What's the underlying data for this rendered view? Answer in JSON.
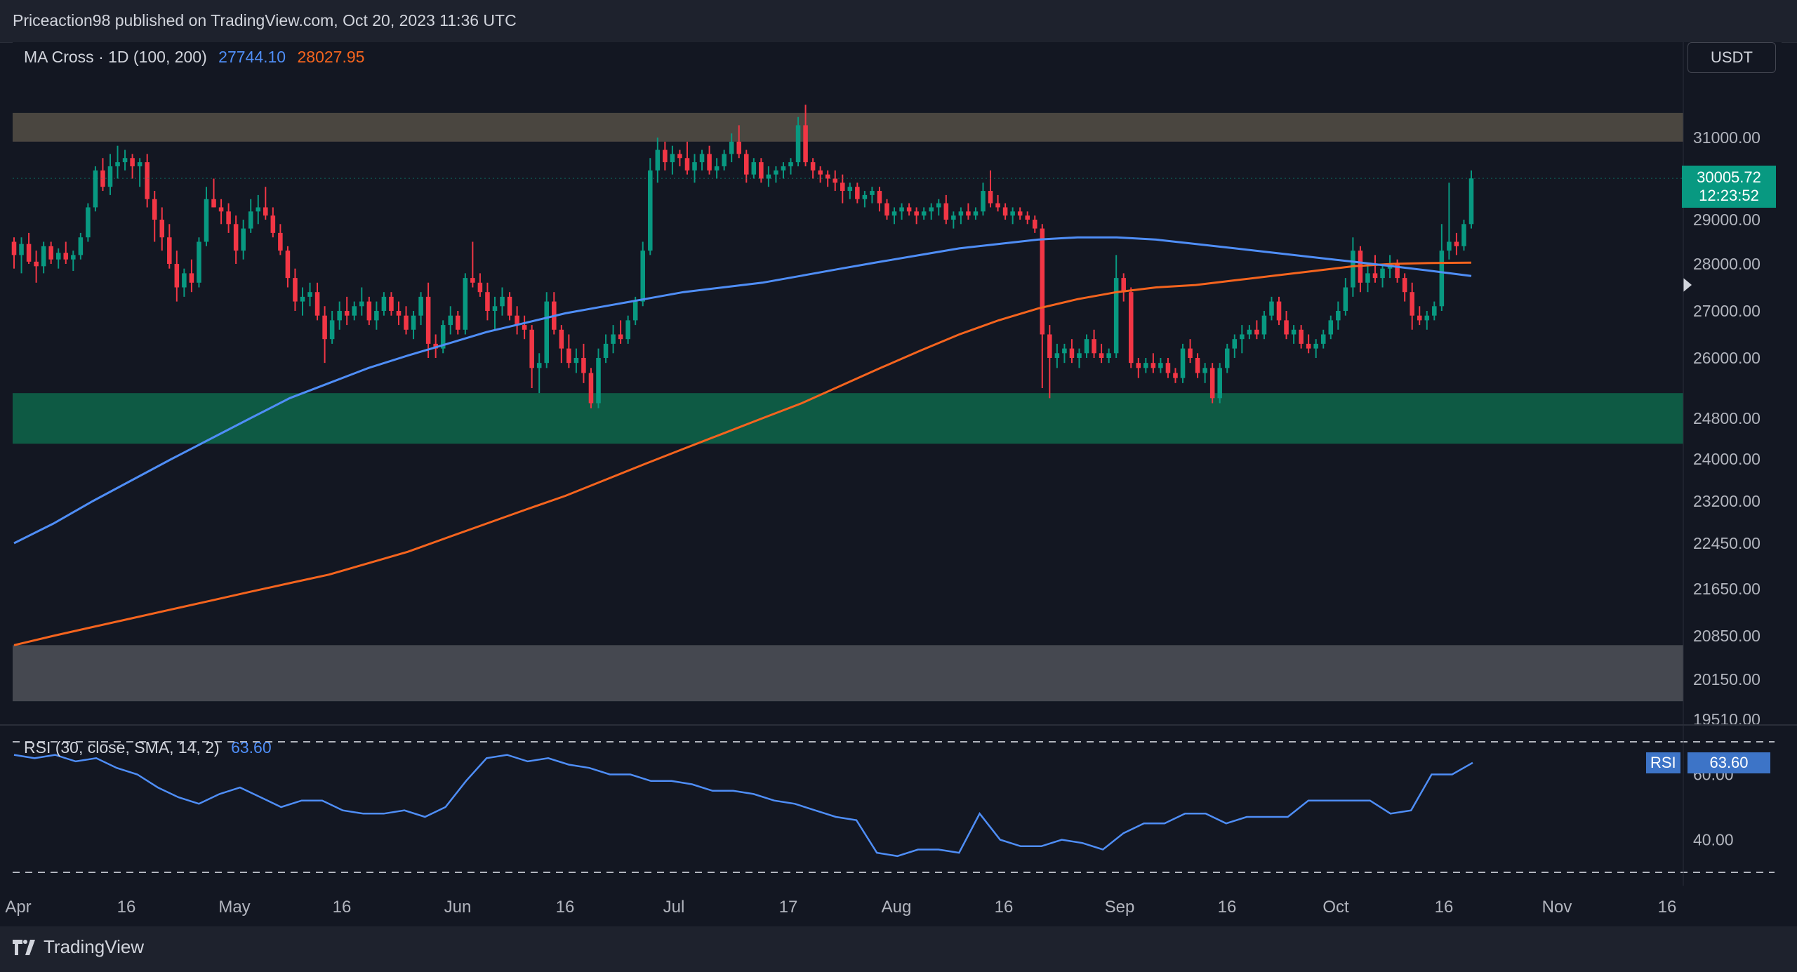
{
  "header": {
    "published_text": "Priceaction98 published on TradingView.com, Oct 20, 2023 11:36 UTC"
  },
  "indicator": {
    "name": "MA Cross · 1D (100, 200)",
    "ma100_value": "27744.10",
    "ma200_value": "28027.95",
    "ma100_color": "#4f8ef7",
    "ma200_color": "#f5641e"
  },
  "currency_button": "USDT",
  "price_tag": {
    "price": "30005.72",
    "countdown": "12:23:52",
    "color": "#089981"
  },
  "rsi": {
    "legend": "RSI (30, close, SMA, 14, 2)",
    "value": "63.60",
    "tag_label": "RSI",
    "tag_value": "63.60",
    "color": "#4f8ef7"
  },
  "footer": {
    "brand": "TradingView"
  },
  "colors": {
    "up": "#089981",
    "down": "#f23645",
    "resistance_zone": "#4a4640",
    "support_zone": "#0e5a44",
    "lower_zone": "#454850"
  },
  "chart_data": {
    "type": "candlestick",
    "title": "",
    "price_axis_ticks": [
      "31000.00",
      "29000.00",
      "28000.00",
      "27000.00",
      "26000.00",
      "24800.00",
      "24000.00",
      "23200.00",
      "22450.00",
      "21650.00",
      "20850.00",
      "20150.00",
      "19510.00"
    ],
    "time_axis_ticks": [
      "Apr",
      "16",
      "May",
      "16",
      "Jun",
      "16",
      "Jul",
      "17",
      "Aug",
      "16",
      "Sep",
      "16",
      "Oct",
      "16",
      "Nov",
      "16"
    ],
    "rsi_axis_ticks": [
      "60.00",
      "40.00"
    ],
    "zones": [
      {
        "name": "resistance",
        "from": 30900,
        "to": 31600
      },
      {
        "name": "support",
        "from": 24300,
        "to": 25300
      },
      {
        "name": "lower",
        "from": 19800,
        "to": 20700
      }
    ],
    "candles": [
      [
        28500,
        28600,
        27900,
        28200
      ],
      [
        28200,
        28600,
        27800,
        28450
      ],
      [
        28450,
        28700,
        28000,
        28050
      ],
      [
        28050,
        28300,
        27600,
        27950
      ],
      [
        27950,
        28500,
        27800,
        28400
      ],
      [
        28400,
        28500,
        28000,
        28100
      ],
      [
        28100,
        28350,
        27900,
        28250
      ],
      [
        28250,
        28500,
        28000,
        28100
      ],
      [
        28100,
        28300,
        27850,
        28200
      ],
      [
        28200,
        28700,
        28100,
        28600
      ],
      [
        28600,
        29400,
        28500,
        29300
      ],
      [
        29300,
        30300,
        29200,
        30200
      ],
      [
        30200,
        30500,
        29700,
        29800
      ],
      [
        29800,
        30600,
        29600,
        30300
      ],
      [
        30300,
        30800,
        30000,
        30400
      ],
      [
        30400,
        30700,
        30200,
        30500
      ],
      [
        30500,
        30600,
        30000,
        30300
      ],
      [
        30300,
        30500,
        29800,
        30400
      ],
      [
        30400,
        30600,
        29300,
        29500
      ],
      [
        29500,
        29700,
        28500,
        29000
      ],
      [
        29000,
        29300,
        28300,
        28600
      ],
      [
        28600,
        28900,
        27900,
        28000
      ],
      [
        28000,
        28300,
        27200,
        27500
      ],
      [
        27500,
        27900,
        27300,
        27800
      ],
      [
        27800,
        28100,
        27400,
        27600
      ],
      [
        27600,
        28600,
        27500,
        28500
      ],
      [
        28500,
        29800,
        28400,
        29500
      ],
      [
        29500,
        30000,
        29300,
        29300
      ],
      [
        29300,
        29500,
        28900,
        29200
      ],
      [
        29200,
        29400,
        28700,
        28900
      ],
      [
        28900,
        29100,
        28000,
        28300
      ],
      [
        28300,
        29000,
        28100,
        28800
      ],
      [
        28800,
        29500,
        28700,
        29200
      ],
      [
        29200,
        29600,
        28900,
        29300
      ],
      [
        29300,
        29800,
        29000,
        29100
      ],
      [
        29100,
        29300,
        28600,
        28700
      ],
      [
        28700,
        28900,
        28200,
        28300
      ],
      [
        28300,
        28400,
        27500,
        27700
      ],
      [
        27700,
        27900,
        27000,
        27200
      ],
      [
        27200,
        27500,
        26900,
        27300
      ],
      [
        27300,
        27600,
        27100,
        27400
      ],
      [
        27400,
        27600,
        26800,
        26900
      ],
      [
        26900,
        27100,
        25900,
        26400
      ],
      [
        26400,
        27000,
        26300,
        26800
      ],
      [
        26800,
        27200,
        26600,
        27000
      ],
      [
        27000,
        27300,
        26700,
        26900
      ],
      [
        26900,
        27200,
        26800,
        27100
      ],
      [
        27100,
        27500,
        26900,
        27200
      ],
      [
        27200,
        27300,
        26700,
        26800
      ],
      [
        26800,
        27200,
        26600,
        27000
      ],
      [
        27000,
        27400,
        26900,
        27300
      ],
      [
        27300,
        27400,
        26900,
        27000
      ],
      [
        27000,
        27200,
        26700,
        26900
      ],
      [
        26900,
        27100,
        26500,
        26600
      ],
      [
        26600,
        27000,
        26400,
        26900
      ],
      [
        26900,
        27400,
        26700,
        27300
      ],
      [
        27300,
        27600,
        26000,
        26300
      ],
      [
        26300,
        26500,
        26000,
        26200
      ],
      [
        26200,
        26800,
        26100,
        26700
      ],
      [
        26700,
        27100,
        26500,
        26900
      ],
      [
        26900,
        27000,
        26500,
        26600
      ],
      [
        26600,
        27800,
        26500,
        27700
      ],
      [
        27700,
        28500,
        27500,
        27600
      ],
      [
        27600,
        27800,
        27300,
        27400
      ],
      [
        27400,
        27600,
        26800,
        27000
      ],
      [
        27000,
        27300,
        26600,
        27100
      ],
      [
        27100,
        27500,
        26900,
        27300
      ],
      [
        27300,
        27400,
        26800,
        26900
      ],
      [
        26900,
        27100,
        26500,
        26700
      ],
      [
        26700,
        26900,
        26400,
        26600
      ],
      [
        26600,
        26700,
        25400,
        25800
      ],
      [
        25800,
        26100,
        25300,
        25900
      ],
      [
        25900,
        27400,
        25800,
        27200
      ],
      [
        27200,
        27400,
        26500,
        26600
      ],
      [
        26600,
        26700,
        25900,
        26200
      ],
      [
        26200,
        26500,
        25800,
        25900
      ],
      [
        25900,
        26200,
        25700,
        26000
      ],
      [
        26000,
        26300,
        25500,
        25700
      ],
      [
        25700,
        25800,
        25000,
        25100
      ],
      [
        25100,
        26200,
        25000,
        26000
      ],
      [
        26000,
        26500,
        25900,
        26300
      ],
      [
        26300,
        26700,
        26100,
        26500
      ],
      [
        26500,
        26800,
        26300,
        26400
      ],
      [
        26400,
        26900,
        26300,
        26800
      ],
      [
        26800,
        27300,
        26700,
        27200
      ],
      [
        27200,
        28500,
        27100,
        28300
      ],
      [
        28300,
        30500,
        28200,
        30200
      ],
      [
        30200,
        31000,
        29900,
        30700
      ],
      [
        30700,
        30900,
        30200,
        30400
      ],
      [
        30400,
        30800,
        30100,
        30600
      ],
      [
        30600,
        30700,
        30300,
        30500
      ],
      [
        30500,
        30900,
        30100,
        30200
      ],
      [
        30200,
        30600,
        29900,
        30400
      ],
      [
        30400,
        30700,
        30200,
        30600
      ],
      [
        30600,
        30800,
        30100,
        30200
      ],
      [
        30200,
        30500,
        30000,
        30300
      ],
      [
        30300,
        30700,
        30200,
        30600
      ],
      [
        30600,
        31100,
        30400,
        30900
      ],
      [
        30900,
        31300,
        30500,
        30600
      ],
      [
        30600,
        30700,
        29900,
        30100
      ],
      [
        30100,
        30500,
        30000,
        30400
      ],
      [
        30400,
        30500,
        29900,
        30000
      ],
      [
        30000,
        30300,
        29800,
        30100
      ],
      [
        30100,
        30300,
        29900,
        30200
      ],
      [
        30200,
        30400,
        30000,
        30300
      ],
      [
        30300,
        30500,
        30100,
        30400
      ],
      [
        30400,
        31500,
        30300,
        31300
      ],
      [
        31300,
        31800,
        30300,
        30400
      ],
      [
        30400,
        30500,
        30000,
        30200
      ],
      [
        30200,
        30300,
        29900,
        30100
      ],
      [
        30100,
        30200,
        29800,
        30000
      ],
      [
        30000,
        30200,
        29700,
        29900
      ],
      [
        29900,
        30100,
        29400,
        29700
      ],
      [
        29700,
        29900,
        29500,
        29800
      ],
      [
        29800,
        29900,
        29400,
        29500
      ],
      [
        29500,
        29700,
        29300,
        29600
      ],
      [
        29600,
        29800,
        29400,
        29700
      ],
      [
        29700,
        29800,
        29200,
        29400
      ],
      [
        29400,
        29500,
        29000,
        29100
      ],
      [
        29100,
        29300,
        28900,
        29200
      ],
      [
        29200,
        29400,
        29000,
        29300
      ],
      [
        29300,
        29400,
        29100,
        29200
      ],
      [
        29200,
        29300,
        28900,
        29100
      ],
      [
        29100,
        29300,
        29000,
        29200
      ],
      [
        29200,
        29400,
        29000,
        29300
      ],
      [
        29300,
        29500,
        29100,
        29400
      ],
      [
        29400,
        29600,
        28900,
        29000
      ],
      [
        29000,
        29200,
        28800,
        29100
      ],
      [
        29100,
        29300,
        28900,
        29200
      ],
      [
        29200,
        29400,
        29000,
        29100
      ],
      [
        29100,
        29300,
        29000,
        29200
      ],
      [
        29200,
        29900,
        29100,
        29700
      ],
      [
        29700,
        30200,
        29300,
        29400
      ],
      [
        29400,
        29600,
        29200,
        29300
      ],
      [
        29300,
        29400,
        29000,
        29100
      ],
      [
        29100,
        29300,
        28900,
        29200
      ],
      [
        29200,
        29300,
        29000,
        29100
      ],
      [
        29100,
        29200,
        28900,
        29000
      ],
      [
        29000,
        29100,
        28700,
        28800
      ],
      [
        28800,
        28900,
        25400,
        26500
      ],
      [
        26500,
        26700,
        25200,
        26000
      ],
      [
        26000,
        26300,
        25800,
        26100
      ],
      [
        26100,
        26300,
        25900,
        26200
      ],
      [
        26200,
        26400,
        25900,
        26000
      ],
      [
        26000,
        26200,
        25800,
        26100
      ],
      [
        26100,
        26500,
        26000,
        26400
      ],
      [
        26400,
        26600,
        26000,
        26100
      ],
      [
        26100,
        26300,
        25900,
        26000
      ],
      [
        26000,
        26200,
        25900,
        26100
      ],
      [
        26100,
        28200,
        26000,
        27700
      ],
      [
        27700,
        27800,
        27200,
        27400
      ],
      [
        27400,
        27500,
        25800,
        25900
      ],
      [
        25900,
        26000,
        25600,
        25800
      ],
      [
        25800,
        26000,
        25700,
        25900
      ],
      [
        25900,
        26100,
        25700,
        25800
      ],
      [
        25800,
        26000,
        25700,
        25900
      ],
      [
        25900,
        26000,
        25600,
        25700
      ],
      [
        25700,
        25800,
        25500,
        25600
      ],
      [
        25600,
        26300,
        25500,
        26200
      ],
      [
        26200,
        26400,
        25900,
        26000
      ],
      [
        26000,
        26100,
        25600,
        25700
      ],
      [
        25700,
        25900,
        25500,
        25800
      ],
      [
        25800,
        25900,
        25100,
        25200
      ],
      [
        25200,
        25900,
        25100,
        25800
      ],
      [
        25800,
        26300,
        25700,
        26200
      ],
      [
        26200,
        26500,
        26000,
        26400
      ],
      [
        26400,
        26700,
        26100,
        26500
      ],
      [
        26500,
        26700,
        26400,
        26600
      ],
      [
        26600,
        26800,
        26400,
        26500
      ],
      [
        26500,
        27000,
        26400,
        26900
      ],
      [
        26900,
        27300,
        26800,
        27200
      ],
      [
        27200,
        27300,
        26700,
        26800
      ],
      [
        26800,
        27000,
        26400,
        26500
      ],
      [
        26500,
        26700,
        26300,
        26600
      ],
      [
        26600,
        26700,
        26200,
        26300
      ],
      [
        26300,
        26500,
        26100,
        26200
      ],
      [
        26200,
        26400,
        26000,
        26300
      ],
      [
        26300,
        26600,
        26200,
        26500
      ],
      [
        26500,
        26900,
        26400,
        26800
      ],
      [
        26800,
        27200,
        26600,
        27000
      ],
      [
        27000,
        27700,
        26900,
        27500
      ],
      [
        27500,
        28600,
        27300,
        28300
      ],
      [
        28300,
        28400,
        27400,
        27600
      ],
      [
        27600,
        28000,
        27400,
        27800
      ],
      [
        27800,
        28200,
        27600,
        27700
      ],
      [
        27700,
        28000,
        27500,
        27900
      ],
      [
        27900,
        28200,
        27700,
        28000
      ],
      [
        28000,
        28100,
        27600,
        27700
      ],
      [
        27700,
        27800,
        27200,
        27400
      ],
      [
        27400,
        27600,
        26600,
        26900
      ],
      [
        26900,
        27100,
        26700,
        26800
      ],
      [
        26800,
        27000,
        26600,
        26900
      ],
      [
        26900,
        27200,
        26800,
        27100
      ],
      [
        27100,
        28900,
        27000,
        28300
      ],
      [
        28300,
        29900,
        28100,
        28500
      ],
      [
        28500,
        28700,
        28200,
        28400
      ],
      [
        28400,
        29000,
        28300,
        28900
      ],
      [
        28900,
        30200,
        28800,
        30005
      ]
    ],
    "ma100": [
      22450,
      22800,
      23200,
      23600,
      24000,
      24400,
      24800,
      25200,
      25500,
      25800,
      26050,
      26300,
      26550,
      26750,
      26950,
      27100,
      27250,
      27400,
      27500,
      27600,
      27750,
      27900,
      28050,
      28200,
      28350,
      28450,
      28550,
      28600,
      28600,
      28550,
      28450,
      28350,
      28250,
      28150,
      28050,
      27950,
      27850,
      27744
    ],
    "ma200": [
      20700,
      20850,
      21000,
      21150,
      21300,
      21450,
      21600,
      21750,
      21900,
      22100,
      22300,
      22550,
      22800,
      23050,
      23300,
      23600,
      23900,
      24200,
      24500,
      24800,
      25100,
      25450,
      25800,
      26150,
      26500,
      26800,
      27050,
      27250,
      27400,
      27500,
      27550,
      27650,
      27750,
      27850,
      27950,
      28000,
      28020,
      28028
    ],
    "rsi": [
      66,
      65,
      66,
      64,
      65,
      62,
      60,
      56,
      53,
      51,
      54,
      56,
      53,
      50,
      52,
      52,
      49,
      48,
      48,
      49,
      47,
      50,
      58,
      65,
      66,
      64,
      65,
      63,
      62,
      60,
      60,
      58,
      58,
      57,
      55,
      55,
      54,
      52,
      51,
      49,
      47,
      46,
      36,
      35,
      37,
      37,
      36,
      48,
      40,
      38,
      38,
      40,
      39,
      37,
      42,
      45,
      45,
      48,
      48,
      45,
      47,
      47,
      47,
      52,
      52,
      52,
      52,
      48,
      49,
      60,
      60,
      63.6
    ]
  }
}
